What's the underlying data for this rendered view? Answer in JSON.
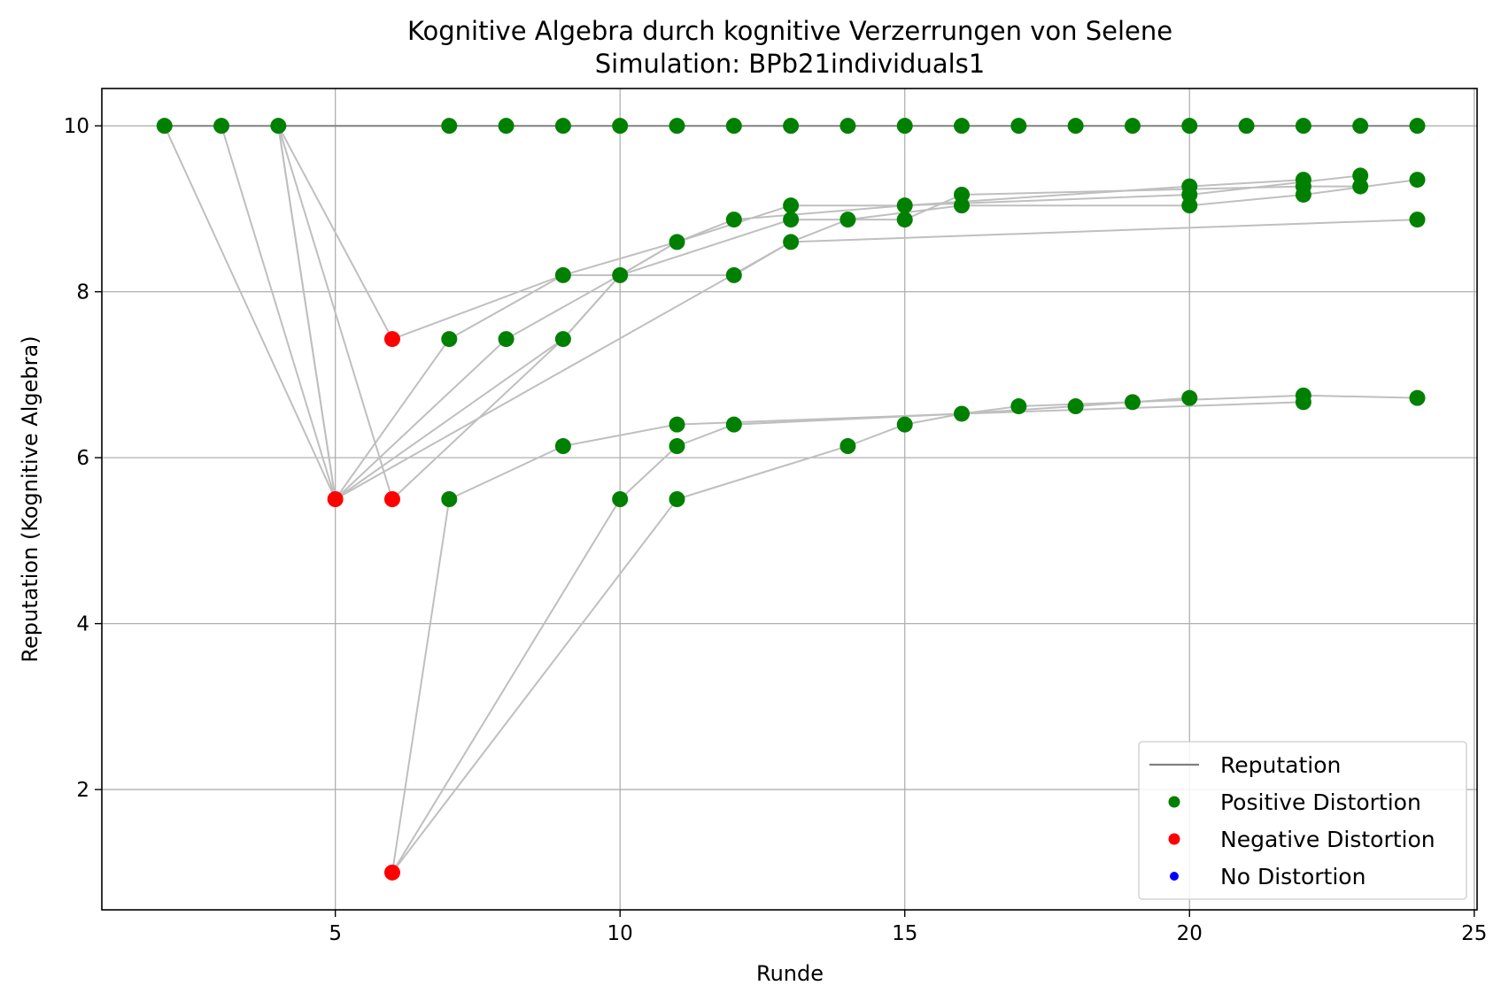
{
  "chart_data": {
    "type": "scatter",
    "title": "Kognitive Algebra durch kognitive Verzerrungen von Selene",
    "subtitle": "Simulation: BPb21individuals1",
    "xlabel": "Runde",
    "ylabel": "Reputation (Kognitive Algebra)",
    "xlim": [
      0.9,
      25.05
    ],
    "ylim": [
      0.55,
      10.45
    ],
    "xticks": [
      5,
      10,
      15,
      20,
      25
    ],
    "yticks": [
      2,
      4,
      6,
      8,
      10
    ],
    "grid": true,
    "legend_position": "lower-right",
    "colors": {
      "reputation_line": "#808080",
      "trajectory_line": "#bfbfbf",
      "positive": "#008000",
      "negative": "#ff0000",
      "none": "#0000ff"
    },
    "legend": [
      {
        "label": "Reputation",
        "kind": "line",
        "color": "#808080"
      },
      {
        "label": "Positive Distortion",
        "kind": "marker",
        "color": "#008000"
      },
      {
        "label": "Negative Distortion",
        "kind": "marker",
        "color": "#ff0000"
      },
      {
        "label": "No Distortion",
        "kind": "marker",
        "color": "#0000ff"
      }
    ],
    "series": [
      {
        "points": [
          [
            2,
            10
          ],
          [
            3,
            10
          ],
          [
            4,
            10
          ],
          [
            7,
            10
          ],
          [
            8,
            10
          ],
          [
            9,
            10
          ],
          [
            10,
            10
          ],
          [
            11,
            10
          ],
          [
            12,
            10
          ],
          [
            13,
            10
          ],
          [
            14,
            10
          ],
          [
            15,
            10
          ],
          [
            16,
            10
          ],
          [
            17,
            10
          ],
          [
            18,
            10
          ],
          [
            19,
            10
          ],
          [
            20,
            10
          ],
          [
            21,
            10
          ],
          [
            22,
            10
          ],
          [
            23,
            10
          ],
          [
            24,
            10
          ]
        ]
      },
      {
        "points": [
          [
            2,
            10
          ],
          [
            5,
            5.5
          ],
          [
            9,
            7.43
          ],
          [
            10,
            8.2
          ],
          [
            11,
            8.6
          ],
          [
            13,
            9.04
          ],
          [
            15,
            9.04
          ],
          [
            20,
            9.17
          ],
          [
            23,
            9.4
          ]
        ]
      },
      {
        "points": [
          [
            3,
            10
          ],
          [
            5,
            5.5
          ],
          [
            7,
            7.43
          ],
          [
            9,
            8.2
          ],
          [
            11,
            8.6
          ],
          [
            12,
            8.87
          ],
          [
            15,
            9.04
          ],
          [
            20,
            9.27
          ],
          [
            22,
            9.35
          ]
        ]
      },
      {
        "points": [
          [
            4,
            10
          ],
          [
            5,
            5.5
          ],
          [
            8,
            7.43
          ],
          [
            10,
            8.2
          ],
          [
            12,
            8.2
          ],
          [
            13,
            8.6
          ],
          [
            24,
            8.87
          ]
        ]
      },
      {
        "points": [
          [
            4,
            10
          ],
          [
            5,
            5.5
          ],
          [
            13,
            8.6
          ],
          [
            14,
            8.87
          ],
          [
            16,
            9.04
          ],
          [
            20,
            9.04
          ],
          [
            22,
            9.17
          ],
          [
            24,
            9.35
          ]
        ]
      },
      {
        "points": [
          [
            4,
            10
          ],
          [
            6,
            7.43
          ],
          [
            9,
            8.2
          ],
          [
            10,
            8.2
          ],
          [
            13,
            8.87
          ],
          [
            15,
            8.87
          ],
          [
            16,
            9.17
          ],
          [
            22,
            9.27
          ],
          [
            23,
            9.27
          ]
        ]
      },
      {
        "points": [
          [
            4,
            10
          ],
          [
            6,
            5.5
          ],
          [
            9,
            7.43
          ],
          [
            10,
            8.2
          ],
          [
            11,
            8.6
          ]
        ]
      },
      {
        "points": [
          [
            6,
            1
          ],
          [
            7,
            5.5
          ],
          [
            9,
            6.14
          ],
          [
            11,
            6.4
          ],
          [
            16,
            6.53
          ],
          [
            17,
            6.62
          ],
          [
            19,
            6.67
          ],
          [
            22,
            6.75
          ],
          [
            24,
            6.72
          ]
        ]
      },
      {
        "points": [
          [
            6,
            1
          ],
          [
            10,
            5.5
          ],
          [
            11,
            6.14
          ],
          [
            12,
            6.4
          ],
          [
            16,
            6.53
          ],
          [
            18,
            6.62
          ],
          [
            20,
            6.72
          ]
        ]
      },
      {
        "points": [
          [
            6,
            1
          ],
          [
            11,
            5.5
          ],
          [
            14,
            6.14
          ],
          [
            15,
            6.4
          ],
          [
            16,
            6.53
          ],
          [
            22,
            6.67
          ]
        ]
      }
    ],
    "markers": {
      "positive": [
        [
          2,
          10
        ],
        [
          3,
          10
        ],
        [
          4,
          10
        ],
        [
          7,
          10
        ],
        [
          8,
          10
        ],
        [
          9,
          10
        ],
        [
          10,
          10
        ],
        [
          11,
          10
        ],
        [
          12,
          10
        ],
        [
          13,
          10
        ],
        [
          14,
          10
        ],
        [
          15,
          10
        ],
        [
          16,
          10
        ],
        [
          17,
          10
        ],
        [
          18,
          10
        ],
        [
          19,
          10
        ],
        [
          20,
          10
        ],
        [
          21,
          10
        ],
        [
          22,
          10
        ],
        [
          23,
          10
        ],
        [
          24,
          10
        ],
        [
          7,
          7.43
        ],
        [
          8,
          7.43
        ],
        [
          9,
          7.43
        ],
        [
          9,
          8.2
        ],
        [
          10,
          8.2
        ],
        [
          12,
          8.2
        ],
        [
          11,
          8.6
        ],
        [
          13,
          8.6
        ],
        [
          12,
          8.87
        ],
        [
          13,
          8.87
        ],
        [
          14,
          8.87
        ],
        [
          15,
          8.87
        ],
        [
          24,
          8.87
        ],
        [
          13,
          9.04
        ],
        [
          15,
          9.04
        ],
        [
          16,
          9.04
        ],
        [
          20,
          9.04
        ],
        [
          16,
          9.17
        ],
        [
          20,
          9.17
        ],
        [
          22,
          9.17
        ],
        [
          20,
          9.27
        ],
        [
          22,
          9.27
        ],
        [
          23,
          9.27
        ],
        [
          22,
          9.35
        ],
        [
          24,
          9.35
        ],
        [
          23,
          9.4
        ],
        [
          7,
          5.5
        ],
        [
          10,
          5.5
        ],
        [
          11,
          5.5
        ],
        [
          9,
          6.14
        ],
        [
          11,
          6.14
        ],
        [
          14,
          6.14
        ],
        [
          11,
          6.4
        ],
        [
          12,
          6.4
        ],
        [
          15,
          6.4
        ],
        [
          16,
          6.53
        ],
        [
          17,
          6.62
        ],
        [
          18,
          6.62
        ],
        [
          19,
          6.67
        ],
        [
          20,
          6.72
        ],
        [
          22,
          6.67
        ],
        [
          22,
          6.75
        ],
        [
          24,
          6.72
        ]
      ],
      "negative": [
        [
          5,
          5.5
        ],
        [
          6,
          5.5
        ],
        [
          6,
          7.43
        ],
        [
          6,
          1
        ]
      ],
      "none": []
    }
  }
}
